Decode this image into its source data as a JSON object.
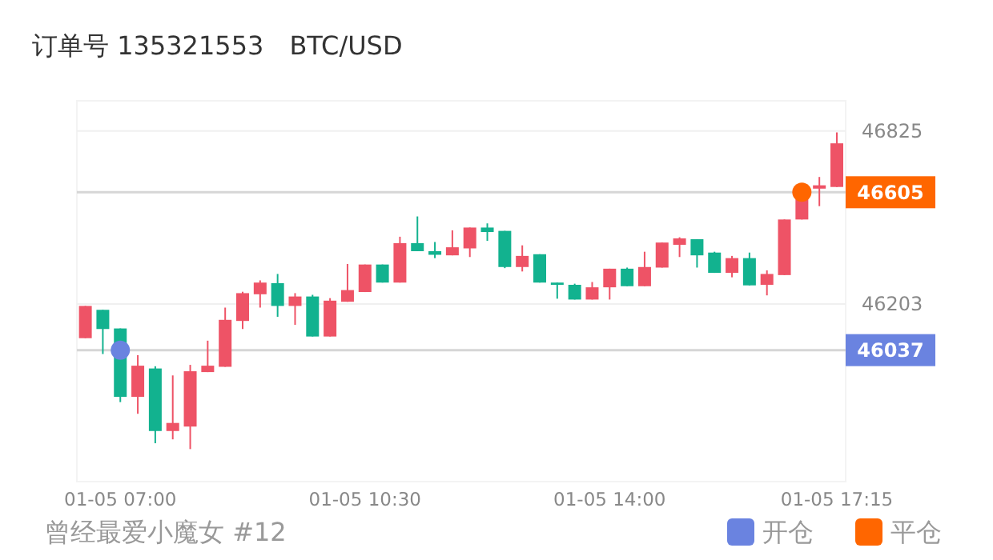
{
  "chart_data": {
    "type": "candlestick",
    "title": "订单号 135321553",
    "subtitle": "BTC/USD",
    "annotations": [
      "曾经最爱小魔女 #12"
    ],
    "categories": [
      null,
      null,
      "01-05 07:00",
      null,
      null,
      null,
      null,
      null,
      null,
      null,
      null,
      null,
      null,
      null,
      null,
      null,
      "01-05 10:30",
      null,
      null,
      null,
      null,
      null,
      null,
      null,
      null,
      null,
      null,
      null,
      null,
      null,
      "01-05 14:00",
      null,
      null,
      null,
      null,
      null,
      null,
      null,
      null,
      null,
      null,
      null,
      null,
      "01-05 17:15"
    ],
    "ohlc": [
      [
        46080,
        46196,
        46080,
        46196
      ],
      [
        46182,
        46182,
        46023,
        46113
      ],
      [
        46115,
        46115,
        45850,
        45869
      ],
      [
        45869,
        46019,
        45808,
        45981
      ],
      [
        45971,
        45979,
        45702,
        45746
      ],
      [
        45746,
        45946,
        45716,
        45775
      ],
      [
        45762,
        45984,
        45681,
        45961
      ],
      [
        45958,
        46071,
        45958,
        45981
      ],
      [
        45977,
        46190,
        45977,
        46146
      ],
      [
        46142,
        46247,
        46113,
        46242
      ],
      [
        46238,
        46288,
        46190,
        46280
      ],
      [
        46278,
        46311,
        46157,
        46196
      ],
      [
        46196,
        46242,
        46128,
        46230
      ],
      [
        46230,
        46236,
        46086,
        46086
      ],
      [
        46086,
        46224,
        46086,
        46215
      ],
      [
        46211,
        46347,
        46211,
        46253
      ],
      [
        46246,
        46345,
        46246,
        46345
      ],
      [
        46345,
        46345,
        46280,
        46280
      ],
      [
        46280,
        46445,
        46280,
        46422
      ],
      [
        46422,
        46518,
        46393,
        46393
      ],
      [
        46393,
        46426,
        46368,
        46380
      ],
      [
        46378,
        46468,
        46378,
        46407
      ],
      [
        46403,
        46478,
        46372,
        46478
      ],
      [
        46478,
        46493,
        46430,
        46462
      ],
      [
        46466,
        46466,
        46332,
        46336
      ],
      [
        46336,
        46414,
        46320,
        46376
      ],
      [
        46382,
        46382,
        46280,
        46280
      ],
      [
        46280,
        46280,
        46222,
        46272
      ],
      [
        46272,
        46276,
        46219,
        46219
      ],
      [
        46219,
        46282,
        46219,
        46263
      ],
      [
        46263,
        46330,
        46219,
        46330
      ],
      [
        46330,
        46334,
        46267,
        46267
      ],
      [
        46267,
        46391,
        46267,
        46336
      ],
      [
        46334,
        46424,
        46334,
        46424
      ],
      [
        46416,
        46443,
        46372,
        46439
      ],
      [
        46436,
        46436,
        46334,
        46378
      ],
      [
        46388,
        46391,
        46315,
        46315
      ],
      [
        46315,
        46376,
        46299,
        46368
      ],
      [
        46368,
        46388,
        46270,
        46270
      ],
      [
        46272,
        46324,
        46234,
        46311
      ],
      [
        46307,
        46507,
        46307,
        46507
      ],
      [
        46507,
        46599,
        46507,
        46599
      ],
      [
        46618,
        46660,
        46555,
        46630
      ],
      [
        46624,
        46820,
        46624,
        46781
      ]
    ],
    "colors": [
      "#ee5366",
      "#12b28f",
      "#12b28f",
      "#ee5366",
      "#12b28f",
      "#ee5366",
      "#ee5366",
      "#ee5366",
      "#ee5366",
      "#ee5366",
      "#ee5366",
      "#12b28f",
      "#ee5366",
      "#12b28f",
      "#ee5366",
      "#ee5366",
      "#ee5366",
      "#12b28f",
      "#ee5366",
      "#12b28f",
      "#12b28f",
      "#ee5366",
      "#ee5366",
      "#12b28f",
      "#12b28f",
      "#ee5366",
      "#12b28f",
      "#12b28f",
      "#12b28f",
      "#ee5366",
      "#ee5366",
      "#12b28f",
      "#ee5366",
      "#ee5366",
      "#ee5366",
      "#12b28f",
      "#12b28f",
      "#ee5366",
      "#12b28f",
      "#ee5366",
      "#ee5366",
      "#ee5366",
      "#ee5366",
      "#ee5366"
    ],
    "series": [
      {
        "type": "scatter",
        "name": "开仓",
        "color": "#6a83e0",
        "values": [
          null,
          null,
          46037,
          null,
          null,
          null,
          null,
          null,
          null,
          null,
          null,
          null,
          null,
          null,
          null,
          null,
          null,
          null,
          null,
          null,
          null,
          null,
          null,
          null,
          null,
          null,
          null,
          null,
          null,
          null,
          null,
          null,
          null,
          null,
          null,
          null,
          null,
          null,
          null,
          null,
          null,
          null,
          null,
          null
        ]
      },
      {
        "type": "scatter",
        "name": "平仓",
        "color": "#ff6600",
        "values": [
          null,
          null,
          null,
          null,
          null,
          null,
          null,
          null,
          null,
          null,
          null,
          null,
          null,
          null,
          null,
          null,
          null,
          null,
          null,
          null,
          null,
          null,
          null,
          null,
          null,
          null,
          null,
          null,
          null,
          null,
          null,
          null,
          null,
          null,
          null,
          null,
          null,
          null,
          null,
          null,
          null,
          46605,
          null,
          null
        ]
      }
    ],
    "ylim": [
      45564,
      46934
    ],
    "yticks": [
      46825,
      46203
    ],
    "ref_lines": [
      {
        "axis": "y",
        "value": 46037,
        "label": "46037",
        "color": "#d6d6d6"
      },
      {
        "axis": "y",
        "value": 46605,
        "label": "46605",
        "color": "#d6d6d6"
      }
    ],
    "grid": "y",
    "legend": "bottom right",
    "marker": "circle"
  }
}
